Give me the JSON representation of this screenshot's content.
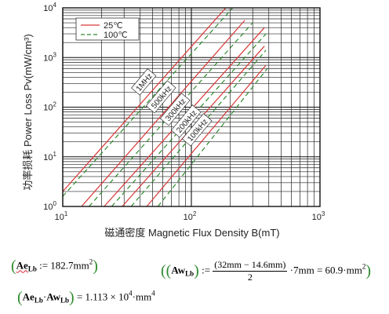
{
  "chart_data": {
    "type": "line",
    "scale": {
      "x": "log",
      "y": "log"
    },
    "xlim": [
      10,
      1000
    ],
    "ylim": [
      1,
      10000
    ],
    "x_ticks": [
      {
        "base": "10",
        "exp": "1"
      },
      {
        "base": "10",
        "exp": "2"
      },
      {
        "base": "10",
        "exp": "3"
      }
    ],
    "y_ticks": [
      {
        "base": "10",
        "exp": "0"
      },
      {
        "base": "10",
        "exp": "1"
      },
      {
        "base": "10",
        "exp": "2"
      },
      {
        "base": "10",
        "exp": "3"
      },
      {
        "base": "10",
        "exp": "4"
      }
    ],
    "xlabel": "磁通密度  Magnetic Flux Density B(mT)",
    "ylabel": "功率损耗  Power Loss Pv(mW/cm³)",
    "grid": true,
    "legend": {
      "position": "top-left",
      "entries": [
        {
          "label": "25℃",
          "style": "solid",
          "color": "#d93838"
        },
        {
          "label": "100℃",
          "style": "dashed",
          "color": "#2e8b2e"
        }
      ]
    },
    "frequency_labels": [
      "1MHz",
      "500kHz",
      "300kHz",
      "200kHz",
      "100kHz"
    ],
    "series": [
      {
        "frequency": "1MHz",
        "temp": "25℃",
        "style": "solid",
        "x": [
          10,
          185
        ],
        "y": [
          2.0,
          10000
        ]
      },
      {
        "frequency": "1MHz",
        "temp": "100℃",
        "style": "dashed",
        "x": [
          10,
          210
        ],
        "y": [
          1.6,
          10000
        ]
      },
      {
        "frequency": "500kHz",
        "temp": "25℃",
        "style": "solid",
        "x": [
          14,
          260
        ],
        "y": [
          1.0,
          5600
        ]
      },
      {
        "frequency": "500kHz",
        "temp": "100℃",
        "style": "dashed",
        "x": [
          16,
          300
        ],
        "y": [
          1.0,
          5000
        ]
      },
      {
        "frequency": "300kHz",
        "temp": "25℃",
        "style": "solid",
        "x": [
          21,
          370
        ],
        "y": [
          1.0,
          4000
        ]
      },
      {
        "frequency": "300kHz",
        "temp": "100℃",
        "style": "dashed",
        "x": [
          24,
          380
        ],
        "y": [
          1.0,
          3000
        ]
      },
      {
        "frequency": "200kHz",
        "temp": "25℃",
        "style": "solid",
        "x": [
          29,
          370
        ],
        "y": [
          1.0,
          1700
        ]
      },
      {
        "frequency": "200kHz",
        "temp": "100℃",
        "style": "dashed",
        "x": [
          34,
          380
        ],
        "y": [
          1.0,
          1400
        ]
      },
      {
        "frequency": "100kHz",
        "temp": "25℃",
        "style": "solid",
        "x": [
          45,
          380
        ],
        "y": [
          1.0,
          700
        ]
      },
      {
        "frequency": "100kHz",
        "temp": "100℃",
        "style": "dashed",
        "x": [
          55,
          390
        ],
        "y": [
          1.0,
          600
        ]
      }
    ]
  },
  "formulas": {
    "ae_lhs": "Ae",
    "ae_sub": "Lb",
    "ae_rhs": ":= 182.7mm",
    "ae_exp": "2",
    "aw_lhs": "Aw",
    "aw_sub": "Lb",
    "aw_assign": ":=",
    "aw_num": "(32mm − 14.6mm)",
    "aw_den": "2",
    "aw_rhs": "·7mm = 60.9·mm",
    "aw_exp": "2",
    "prod_ae": "Ae",
    "prod_ae_sub": "Lb",
    "prod_dot": "·",
    "prod_aw": "Aw",
    "prod_aw_sub": "Lb",
    "prod_rhs": "= 1.113 × 10",
    "prod_pow": "4",
    "prod_unit": "·mm",
    "prod_unit_exp": "4"
  }
}
